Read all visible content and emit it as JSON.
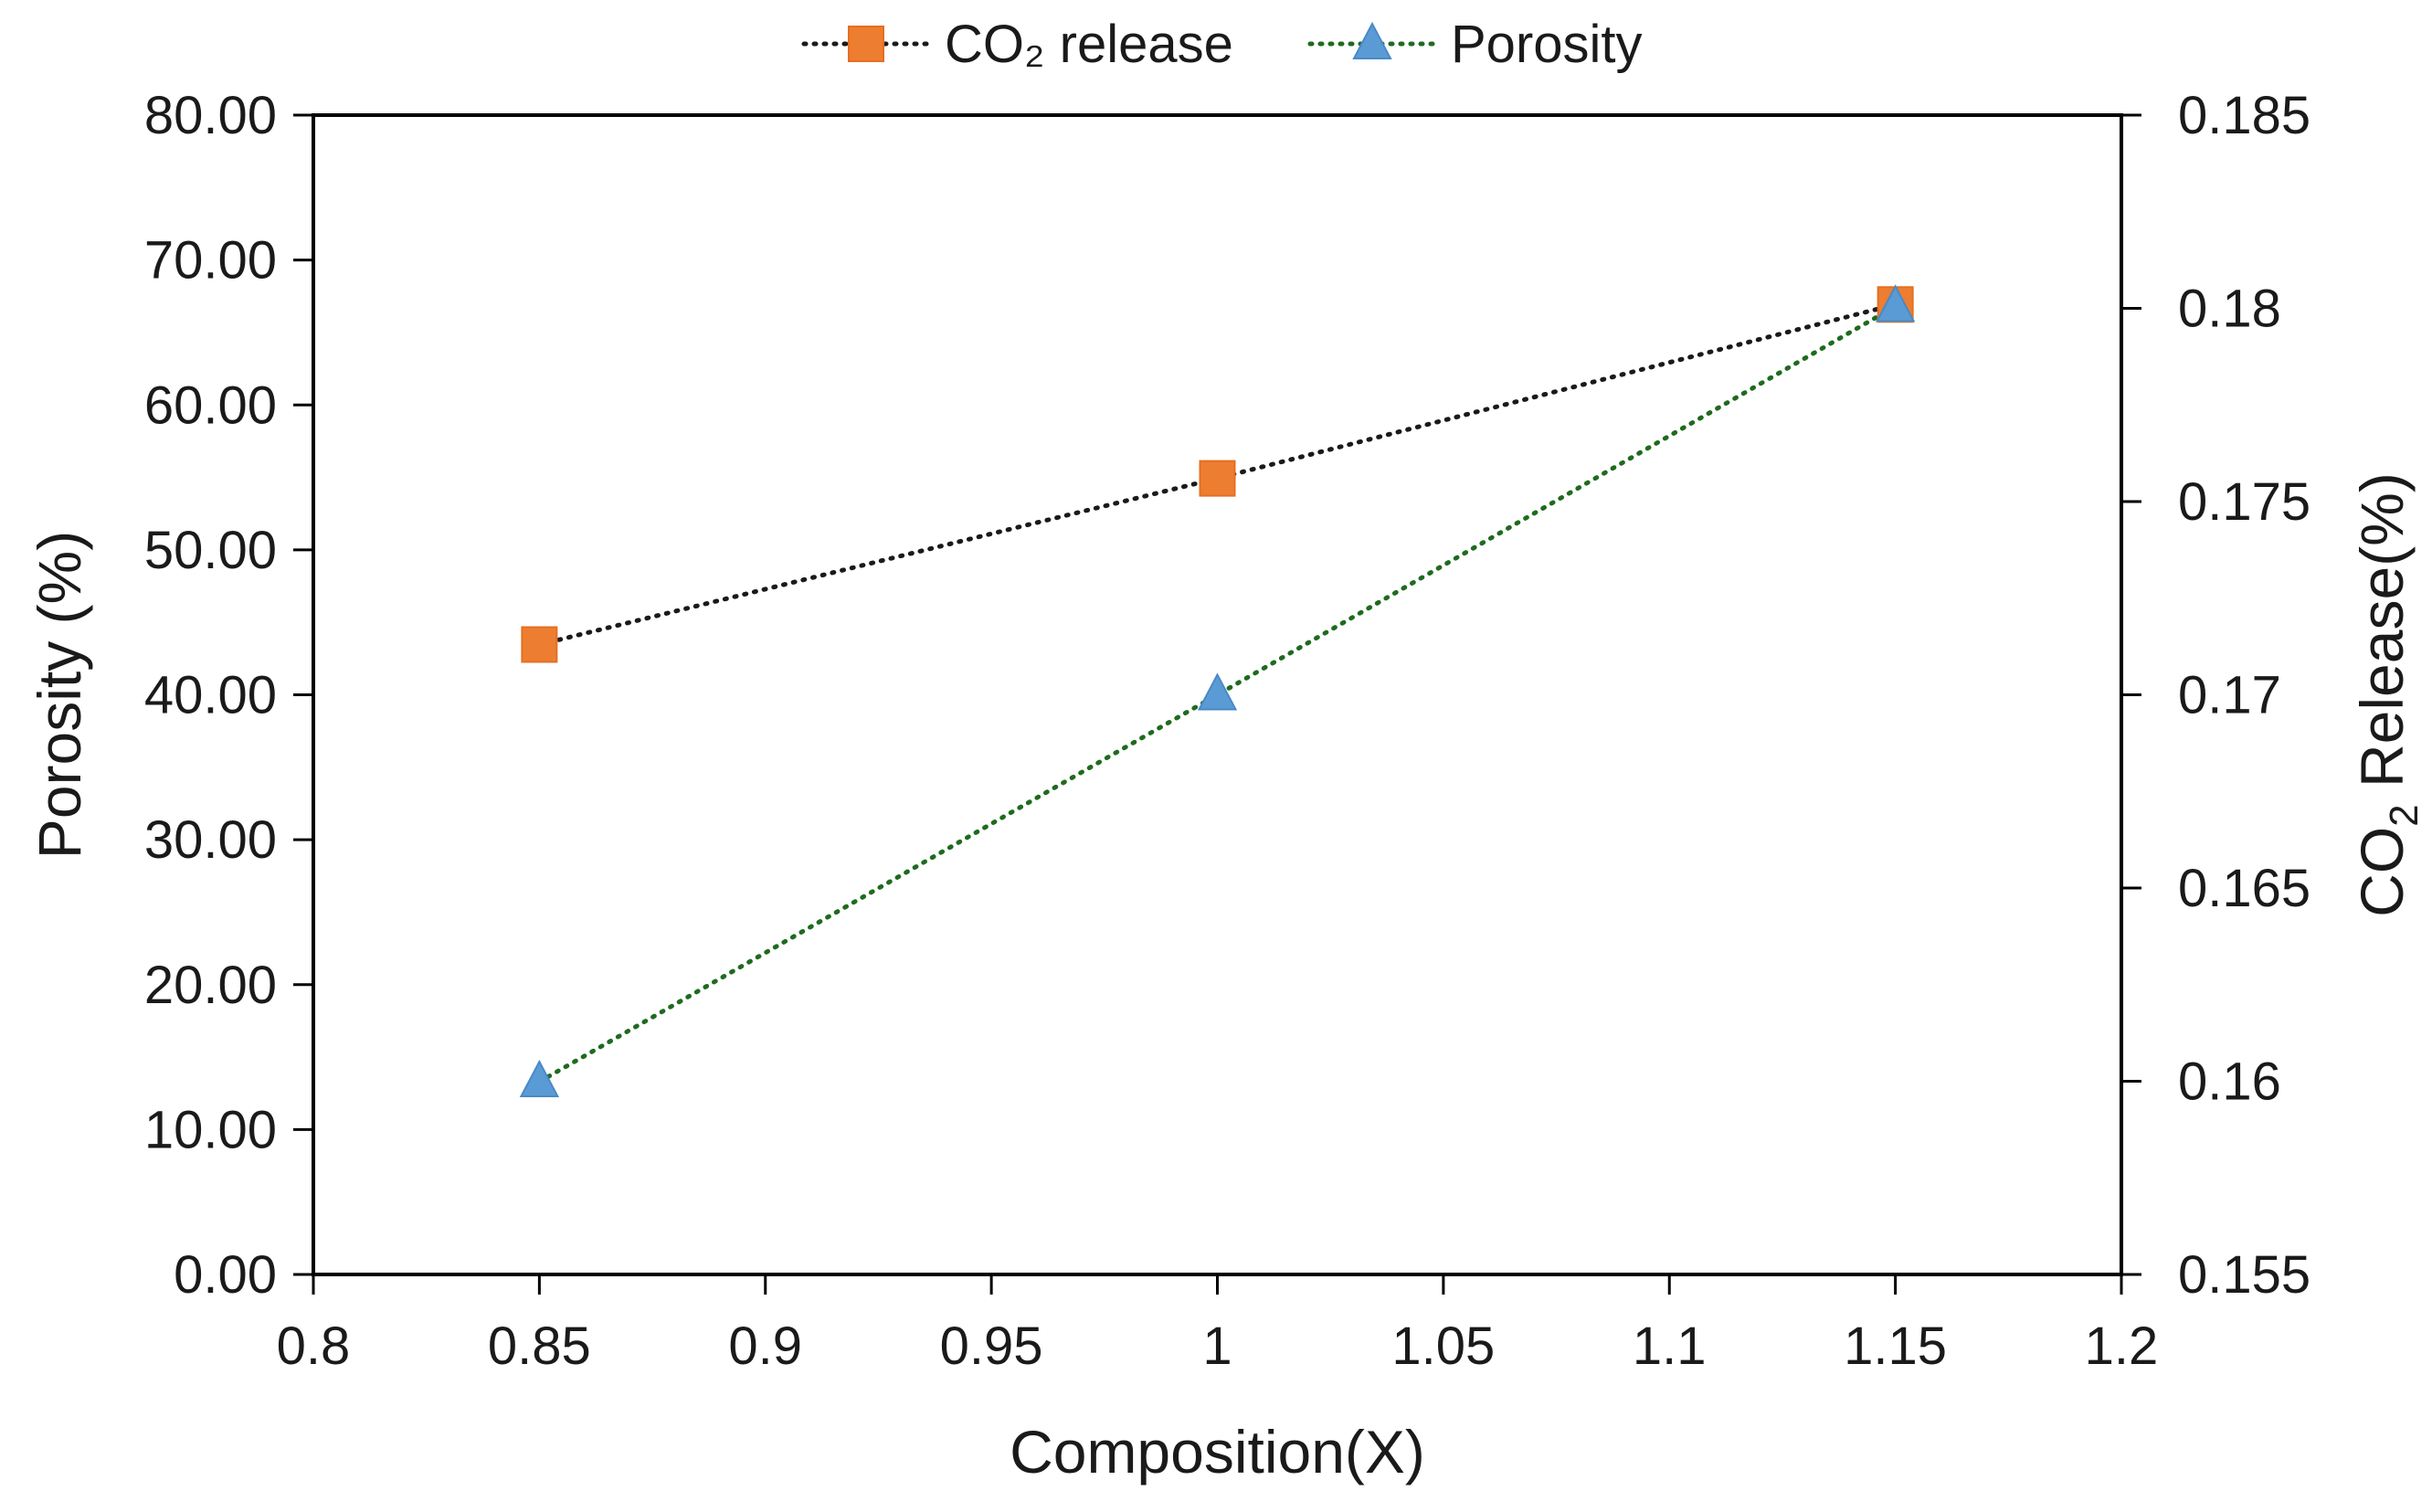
{
  "chart_data": {
    "type": "line",
    "title": "",
    "xlabel": "Composition(X)",
    "ylabel": "Porosity (%)",
    "y2label": {
      "prefix": "CO",
      "subscript": "2",
      "suffix": " Release(%)"
    },
    "xlim": [
      0.8,
      1.2
    ],
    "ylim": [
      0,
      80
    ],
    "y2lim": [
      0.155,
      0.185
    ],
    "grid": false,
    "legend_position": "top-center",
    "x_ticks": [
      "0.8",
      "0.85",
      "0.9",
      "0.95",
      "1",
      "1.05",
      "1.1",
      "1.15",
      "1.2"
    ],
    "y_ticks": [
      "0.00",
      "10.00",
      "20.00",
      "30.00",
      "40.00",
      "50.00",
      "60.00",
      "70.00",
      "80.00"
    ],
    "y2_ticks": [
      "0.155",
      "0.16",
      "0.165",
      "0.17",
      "0.175",
      "0.18",
      "0.185"
    ],
    "series": [
      {
        "name": "CO₂ release",
        "axis": "right",
        "marker": "square",
        "color": "#ED7D31",
        "line_color": "#1a1a1a",
        "x": [
          0.85,
          1.0,
          1.15
        ],
        "values": [
          0.1713,
          0.1756,
          0.1801
        ]
      },
      {
        "name": "Porosity",
        "axis": "left",
        "marker": "triangle",
        "color": "#5B9BD5",
        "line_color": "#1E6B1E",
        "x": [
          0.85,
          1.0,
          1.15
        ],
        "values": [
          13.3,
          40.0,
          66.8
        ]
      }
    ]
  }
}
